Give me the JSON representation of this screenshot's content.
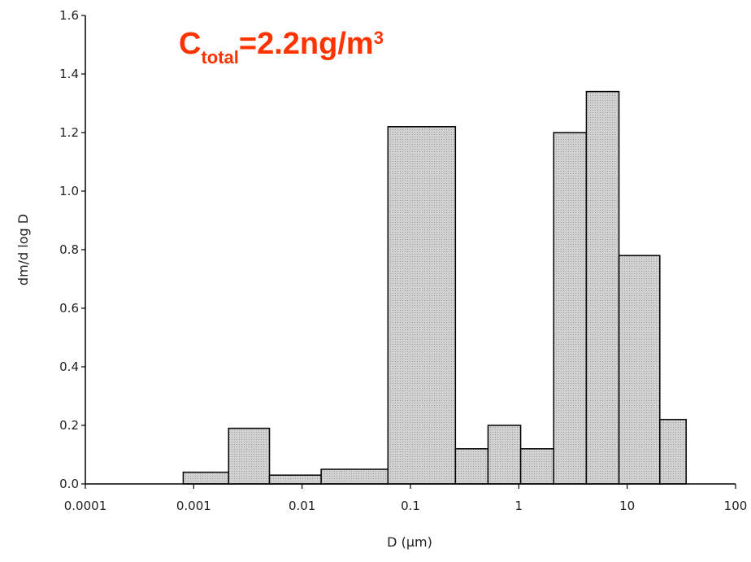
{
  "chart_data": {
    "type": "bar",
    "subtype": "histogram",
    "xscale": "log",
    "xlim": [
      0.0001,
      100
    ],
    "ylim": [
      0,
      1.6
    ],
    "grid": false,
    "legend": "none",
    "xlabel": "D (µm)",
    "ylabel": "dm/d log D",
    "xticks": [
      "0.0001",
      "0.001",
      "0.01",
      "0.1",
      "1",
      "10",
      "100"
    ],
    "yticks": [
      "0.0",
      "0.2",
      "0.4",
      "0.6",
      "0.8",
      "1.0",
      "1.2",
      "1.4",
      "1.6"
    ],
    "bins": [
      {
        "x0": 0.0008,
        "x1": 0.0021,
        "value": 0.04
      },
      {
        "x0": 0.0021,
        "x1": 0.005,
        "value": 0.19
      },
      {
        "x0": 0.005,
        "x1": 0.015,
        "value": 0.03
      },
      {
        "x0": 0.015,
        "x1": 0.062,
        "value": 0.05
      },
      {
        "x0": 0.062,
        "x1": 0.26,
        "value": 1.22
      },
      {
        "x0": 0.26,
        "x1": 0.52,
        "value": 0.12
      },
      {
        "x0": 0.52,
        "x1": 1.04,
        "value": 0.2
      },
      {
        "x0": 1.04,
        "x1": 2.1,
        "value": 0.12
      },
      {
        "x0": 2.1,
        "x1": 4.2,
        "value": 1.2
      },
      {
        "x0": 4.2,
        "x1": 8.4,
        "value": 1.34
      },
      {
        "x0": 8.4,
        "x1": 20,
        "value": 0.78
      },
      {
        "x0": 20,
        "x1": 35,
        "value": 0.22
      }
    ],
    "bar_color": "#c8c8c8",
    "annotation": {
      "main": "C",
      "subscript": "total",
      "text": "=2.2ng/m",
      "superscript": "3",
      "color": "#ff3300"
    }
  }
}
